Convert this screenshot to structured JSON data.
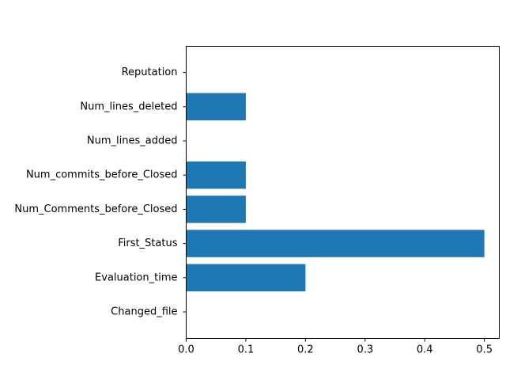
{
  "chart_data": {
    "type": "bar",
    "orientation": "horizontal",
    "categories": [
      "Changed_file",
      "Evaluation_time",
      "First_Status",
      "Num_Comments_before_Closed",
      "Num_commits_before_Closed",
      "Num_lines_added",
      "Num_lines_deleted",
      "Reputation"
    ],
    "values": [
      0.0,
      0.2,
      0.5,
      0.1,
      0.1,
      0.0,
      0.1,
      0.0
    ],
    "title": "",
    "xlabel": "",
    "ylabel": "",
    "xlim": [
      0,
      0.525
    ],
    "xticks": [
      "0.0",
      "0.1",
      "0.2",
      "0.3",
      "0.4",
      "0.5"
    ],
    "grid": false,
    "bar_color": "#1f77b4"
  }
}
